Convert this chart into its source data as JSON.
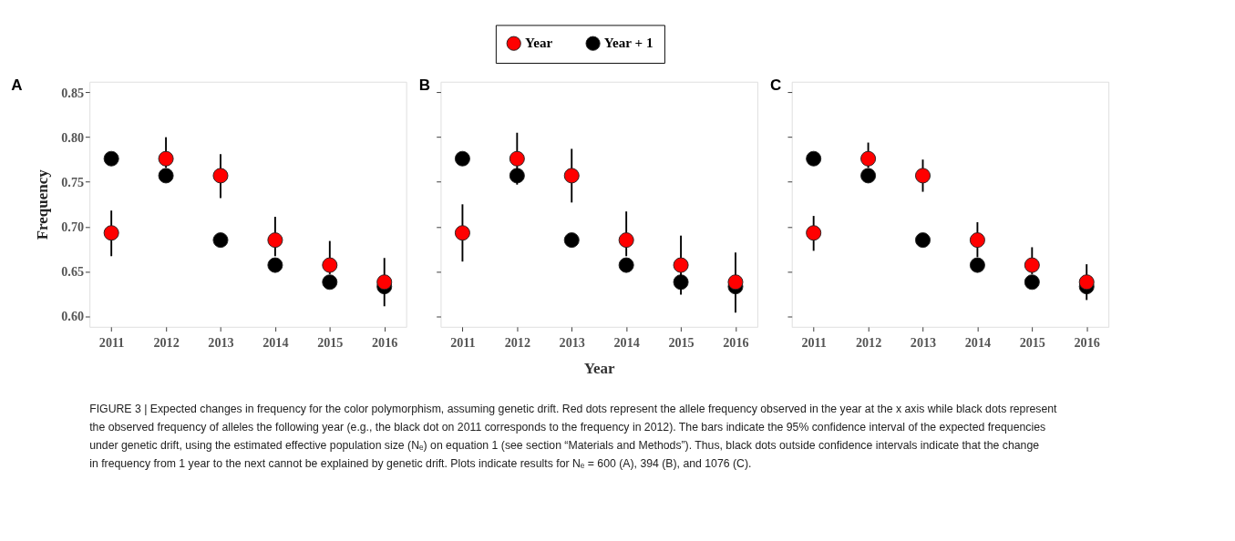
{
  "chart_data": [
    {
      "type": "scatter",
      "title": "A",
      "ylabel": "Frequency",
      "legend": "top",
      "categories": [
        "2011",
        "2012",
        "2013",
        "2014",
        "2015",
        "2016"
      ],
      "ylim": [
        0.588,
        0.862
      ],
      "yticks": [
        {
          "value": 0.6,
          "label": "0.60"
        },
        {
          "value": 0.65,
          "label": "0.65"
        },
        {
          "value": 0.7,
          "label": "0.70"
        },
        {
          "value": 0.75,
          "label": "0.75"
        },
        {
          "value": 0.8,
          "label": "0.80"
        },
        {
          "value": 0.85,
          "label": "0.85"
        }
      ],
      "marker": "circle",
      "series": [
        {
          "name": "Year",
          "color": "#ff0000",
          "values": [
            0.693,
            0.776,
            0.757,
            0.685,
            0.657,
            0.638
          ],
          "errors": [
            [
              0.667,
              0.718
            ],
            [
              0.766,
              0.8
            ],
            [
              0.732,
              0.781
            ],
            [
              0.667,
              0.711
            ],
            [
              0.647,
              0.684
            ],
            [
              0.611,
              0.665
            ]
          ]
        },
        {
          "name": "Year + 1",
          "color": "#000000",
          "values": [
            0.776,
            0.757,
            0.685,
            0.657,
            0.638,
            0.633
          ]
        }
      ],
      "annotations": [
        "FIGURE 3 | Expected changes in frequency for the color polymorphism, assuming genetic drift. Red dots represent the allele frequency observed in the year at the x axis while black dots represent the observed frequency of alleles the following year (e.g., the black dot on 2011 corresponds to the frequency in 2012). The bars indicate the 95% confidence interval of the expected frequencies under genetic drift, using the estimated effective population size (Nₑ) on equation 1 (see section “Materials and Methods”). Thus, black dots outside confidence intervals indicate that the change in frequency from 1 year to the next cannot be explained by genetic drift. Plots indicate results for Nₑ = 600 (A), 394 (B), and 1076 (C)."
      ]
    },
    {
      "type": "scatter",
      "title": "B",
      "xlabel": "Year",
      "tick_labels": "x",
      "categories": [
        "2011",
        "2012",
        "2013",
        "2014",
        "2015",
        "2016"
      ],
      "ylim": [
        0.588,
        0.862
      ],
      "yticks": [
        0.6,
        0.65,
        0.7,
        0.75,
        0.8,
        0.85
      ],
      "marker": "circle",
      "series": [
        {
          "color": "#ff0000",
          "values": [
            0.693,
            0.776,
            0.757,
            0.685,
            0.657,
            0.638
          ],
          "errors": [
            [
              0.661,
              0.725
            ],
            [
              0.747,
              0.805
            ],
            [
              0.727,
              0.787
            ],
            [
              0.667,
              0.717
            ],
            [
              0.624,
              0.69
            ],
            [
              0.604,
              0.671
            ]
          ]
        },
        {
          "color": "#000000",
          "values": [
            0.776,
            0.757,
            0.685,
            0.657,
            0.638,
            0.633
          ]
        }
      ]
    },
    {
      "type": "scatter",
      "title": "C",
      "tick_labels": "x",
      "categories": [
        "2011",
        "2012",
        "2013",
        "2014",
        "2015",
        "2016"
      ],
      "ylim": [
        0.588,
        0.862
      ],
      "yticks": [
        0.6,
        0.65,
        0.7,
        0.75,
        0.8,
        0.85
      ],
      "marker": "circle",
      "series": [
        {
          "color": "#ff0000",
          "values": [
            0.693,
            0.776,
            0.757,
            0.685,
            0.657,
            0.638
          ],
          "errors": [
            [
              0.673,
              0.712
            ],
            [
              0.766,
              0.794
            ],
            [
              0.739,
              0.775
            ],
            [
              0.666,
              0.705
            ],
            [
              0.647,
              0.677
            ],
            [
              0.618,
              0.658
            ]
          ]
        },
        {
          "color": "#000000",
          "values": [
            0.776,
            0.757,
            0.685,
            0.657,
            0.638,
            0.633
          ]
        }
      ]
    }
  ]
}
